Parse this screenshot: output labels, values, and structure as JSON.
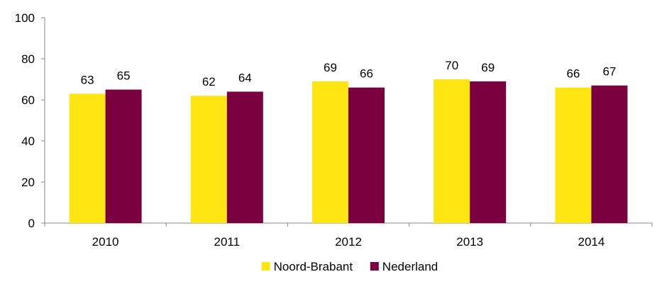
{
  "chart_data": {
    "type": "bar",
    "title": "",
    "xlabel": "",
    "ylabel": "",
    "categories": [
      "2010",
      "2011",
      "2012",
      "2013",
      "2014"
    ],
    "series": [
      {
        "name": "Noord-Brabant",
        "color": "#FFE512",
        "values": [
          63,
          62,
          69,
          70,
          66
        ]
      },
      {
        "name": "Nederland",
        "color": "#7A0040",
        "values": [
          65,
          64,
          66,
          69,
          67
        ]
      }
    ],
    "ylim": [
      0,
      100
    ],
    "yticks": [
      "0",
      "20",
      "40",
      "60",
      "80",
      "100"
    ],
    "grid": false,
    "legend_position": "bottom-center",
    "data_labels": true
  }
}
